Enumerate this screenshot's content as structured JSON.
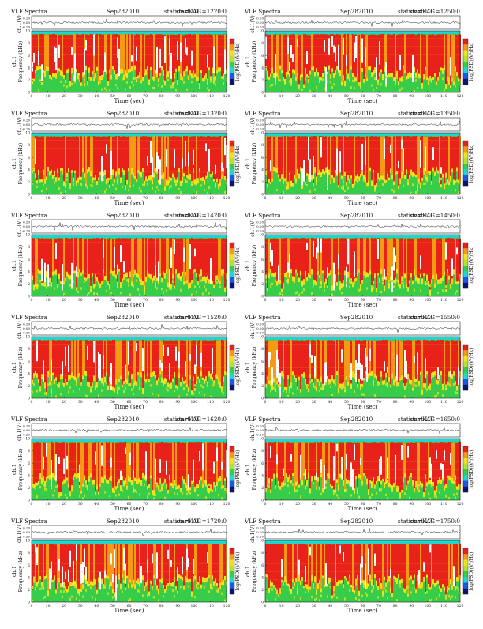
{
  "palette": {
    "red": "#e8211a",
    "orange": "#f59a13",
    "yellow": "#f2e21c",
    "lime": "#b6e12d",
    "green": "#37cc4a",
    "cyan": "#1fd6d1",
    "blue": "#1b58e6",
    "navy": "#0b1470",
    "white": "#ffffff",
    "trace": "#222222"
  },
  "chart_data": [
    {
      "type": "heatmap",
      "title_left": "VLF Spectra",
      "date": "Sep282010",
      "station": "station=KAG",
      "start": "start UT =1220:0",
      "top_ylabel": "ch.1(V)",
      "top_yticks": [
        "0.20",
        "0.00",
        "-0.20"
      ],
      "ylabel_main": "ch.1",
      "ylabel": "Frequency (kHz)",
      "yticks": [
        "0",
        "2",
        "4",
        "6",
        "8",
        "10"
      ],
      "xlabel": "Time (sec)",
      "xticks": [
        "0",
        "10",
        "20",
        "30",
        "40",
        "50",
        "60",
        "70",
        "80",
        "90",
        "100",
        "110",
        "120"
      ],
      "colorbar_label": "log(PSD)(V²/Hz)",
      "xlim": [
        0,
        120
      ],
      "ylim": [
        0,
        10
      ]
    },
    {
      "type": "heatmap",
      "title_left": "VLF Spectra",
      "date": "Sep282010",
      "station": "station=KAG",
      "start": "start UT =1250:0",
      "top_ylabel": "ch.1(V)",
      "top_yticks": [
        "0.20",
        "0.00",
        "-0.20"
      ],
      "ylabel_main": "ch.1",
      "ylabel": "Frequency (kHz)",
      "yticks": [
        "0",
        "2",
        "4",
        "6",
        "8",
        "10"
      ],
      "xlabel": "Time (sec)",
      "xticks": [
        "0",
        "10",
        "20",
        "30",
        "40",
        "50",
        "60",
        "70",
        "80",
        "90",
        "100",
        "110",
        "120"
      ],
      "colorbar_label": "log(PSD)(V²/Hz)",
      "xlim": [
        0,
        120
      ],
      "ylim": [
        0,
        10
      ]
    },
    {
      "type": "heatmap",
      "title_left": "VLF Spectra",
      "date": "Sep282010",
      "station": "station=KAG",
      "start": "start UT =1320:0",
      "top_ylabel": "ch.1(V)",
      "top_yticks": [
        "0.20",
        "0.00",
        "-0.20"
      ],
      "ylabel_main": "ch.1",
      "ylabel": "Frequency (kHz)",
      "yticks": [
        "0",
        "2",
        "4",
        "6",
        "8",
        "10"
      ],
      "xlabel": "Time (sec)",
      "xticks": [
        "0",
        "10",
        "20",
        "30",
        "40",
        "50",
        "60",
        "70",
        "80",
        "90",
        "100",
        "110",
        "120"
      ],
      "colorbar_label": "log(PSD)(V²/Hz)",
      "xlim": [
        0,
        120
      ],
      "ylim": [
        0,
        10
      ]
    },
    {
      "type": "heatmap",
      "title_left": "VLF Spectra",
      "date": "Sep282010",
      "station": "station=KAG",
      "start": "start UT =1350:0",
      "top_ylabel": "ch.1(V)",
      "top_yticks": [
        "0.20",
        "0.00",
        "-0.20"
      ],
      "ylabel_main": "ch.1",
      "ylabel": "Frequency (kHz)",
      "yticks": [
        "0",
        "2",
        "4",
        "6",
        "8",
        "10"
      ],
      "xlabel": "Time (sec)",
      "xticks": [
        "0",
        "10",
        "20",
        "30",
        "40",
        "50",
        "60",
        "70",
        "80",
        "90",
        "100",
        "110",
        "120"
      ],
      "colorbar_label": "log(PSD)(V²/Hz)",
      "xlim": [
        0,
        120
      ],
      "ylim": [
        0,
        10
      ]
    },
    {
      "type": "heatmap",
      "title_left": "VLF Spectra",
      "date": "Sep282010",
      "station": "station=KAG",
      "start": "start UT =1420:0",
      "top_ylabel": "ch.1(V)",
      "top_yticks": [
        "0.20",
        "0.00",
        "-0.20"
      ],
      "ylabel_main": "ch.1",
      "ylabel": "Frequency (kHz)",
      "yticks": [
        "0",
        "2",
        "4",
        "6",
        "8",
        "10"
      ],
      "xlabel": "Time (sec)",
      "xticks": [
        "0",
        "10",
        "20",
        "30",
        "40",
        "50",
        "60",
        "70",
        "80",
        "90",
        "100",
        "110",
        "120"
      ],
      "colorbar_label": "log(PSD)(V²/Hz)",
      "xlim": [
        0,
        120
      ],
      "ylim": [
        0,
        10
      ]
    },
    {
      "type": "heatmap",
      "title_left": "VLF Spectra",
      "date": "Sep282010",
      "station": "station=KAG",
      "start": "start UT =1450:0",
      "top_ylabel": "ch.1(V)",
      "top_yticks": [
        "0.20",
        "0.00",
        "-0.20"
      ],
      "ylabel_main": "ch.1",
      "ylabel": "Frequency (kHz)",
      "yticks": [
        "0",
        "2",
        "4",
        "6",
        "8",
        "10"
      ],
      "xlabel": "Time (sec)",
      "xticks": [
        "0",
        "10",
        "20",
        "30",
        "40",
        "50",
        "60",
        "70",
        "80",
        "90",
        "100",
        "110",
        "120"
      ],
      "colorbar_label": "log(PSD)(V²/Hz)",
      "xlim": [
        0,
        120
      ],
      "ylim": [
        0,
        10
      ]
    },
    {
      "type": "heatmap",
      "title_left": "VLF Spectra",
      "date": "Sep282010",
      "station": "station=KAG",
      "start": "start UT =1520:0",
      "top_ylabel": "ch.1(V)",
      "top_yticks": [
        "0.20",
        "0.00",
        "-0.20"
      ],
      "ylabel_main": "ch.1",
      "ylabel": "Frequency (kHz)",
      "yticks": [
        "0",
        "2",
        "4",
        "6",
        "8",
        "10"
      ],
      "xlabel": "Time (sec)",
      "xticks": [
        "0",
        "10",
        "20",
        "30",
        "40",
        "50",
        "60",
        "70",
        "80",
        "90",
        "100",
        "110",
        "120"
      ],
      "colorbar_label": "log(PSD)(V²/Hz)",
      "xlim": [
        0,
        120
      ],
      "ylim": [
        0,
        10
      ]
    },
    {
      "type": "heatmap",
      "title_left": "VLF Spectra",
      "date": "Sep282010",
      "station": "station=KAG",
      "start": "start UT =1550:0",
      "top_ylabel": "ch.1(V)",
      "top_yticks": [
        "0.20",
        "0.00",
        "-0.20"
      ],
      "ylabel_main": "ch.1",
      "ylabel": "Frequency (kHz)",
      "yticks": [
        "0",
        "2",
        "4",
        "6",
        "8",
        "10"
      ],
      "xlabel": "Time (sec)",
      "xticks": [
        "0",
        "10",
        "20",
        "30",
        "40",
        "50",
        "60",
        "70",
        "80",
        "90",
        "100",
        "110",
        "120"
      ],
      "colorbar_label": "log(PSD)(V²/Hz)",
      "xlim": [
        0,
        120
      ],
      "ylim": [
        0,
        10
      ]
    },
    {
      "type": "heatmap",
      "title_left": "VLF Spectra",
      "date": "Sep282010",
      "station": "station=KAG",
      "start": "start UT =1620:0",
      "top_ylabel": "ch.1(V)",
      "top_yticks": [
        "0.20",
        "0.00",
        "-0.20"
      ],
      "ylabel_main": "ch.1",
      "ylabel": "Frequency (kHz)",
      "yticks": [
        "0",
        "2",
        "4",
        "6",
        "8",
        "10"
      ],
      "xlabel": "Time (sec)",
      "xticks": [
        "0",
        "10",
        "20",
        "30",
        "40",
        "50",
        "60",
        "70",
        "80",
        "90",
        "100",
        "110",
        "120"
      ],
      "colorbar_label": "log(PSD)(V²/Hz)",
      "xlim": [
        0,
        120
      ],
      "ylim": [
        0,
        10
      ]
    },
    {
      "type": "heatmap",
      "title_left": "VLF Spectra",
      "date": "Sep282010",
      "station": "station=KAG",
      "start": "start UT =1650:0",
      "top_ylabel": "ch.1(V)",
      "top_yticks": [
        "0.20",
        "0.00",
        "-0.20"
      ],
      "ylabel_main": "ch.1",
      "ylabel": "Frequency (kHz)",
      "yticks": [
        "0",
        "2",
        "4",
        "6",
        "8",
        "10"
      ],
      "xlabel": "Time (sec)",
      "xticks": [
        "0",
        "10",
        "20",
        "30",
        "40",
        "50",
        "60",
        "70",
        "80",
        "90",
        "100",
        "110",
        "120"
      ],
      "colorbar_label": "log(PSD)(V²/Hz)",
      "xlim": [
        0,
        120
      ],
      "ylim": [
        0,
        10
      ]
    },
    {
      "type": "heatmap",
      "title_left": "VLF Spectra",
      "date": "Sep282010",
      "station": "station=KAG",
      "start": "start UT =1720:0",
      "top_ylabel": "ch.1(V)",
      "top_yticks": [
        "0.20",
        "0.00",
        "-0.20"
      ],
      "ylabel_main": "ch.1",
      "ylabel": "Frequency (kHz)",
      "yticks": [
        "0",
        "2",
        "4",
        "6",
        "8",
        "10"
      ],
      "xlabel": "Time (sec)",
      "xticks": [
        "0",
        "10",
        "20",
        "30",
        "40",
        "50",
        "60",
        "70",
        "80",
        "90",
        "100",
        "110",
        "120"
      ],
      "colorbar_label": "log(PSD)(V²/Hz)",
      "xlim": [
        0,
        120
      ],
      "ylim": [
        0,
        10
      ]
    },
    {
      "type": "heatmap",
      "title_left": "VLF Spectra",
      "date": "Sep282010",
      "station": "station=KAG",
      "start": "start UT =1750:0",
      "top_ylabel": "ch.1(V)",
      "top_yticks": [
        "0.20",
        "0.00",
        "-0.20"
      ],
      "ylabel_main": "ch.1",
      "ylabel": "Frequency (kHz)",
      "yticks": [
        "0",
        "2",
        "4",
        "6",
        "8",
        "10"
      ],
      "xlabel": "Time (sec)",
      "xticks": [
        "0",
        "10",
        "20",
        "30",
        "40",
        "50",
        "60",
        "70",
        "80",
        "90",
        "100",
        "110",
        "120"
      ],
      "colorbar_label": "log(PSD)(V²/Hz)",
      "xlim": [
        0,
        120
      ],
      "ylim": [
        0,
        10
      ]
    }
  ]
}
